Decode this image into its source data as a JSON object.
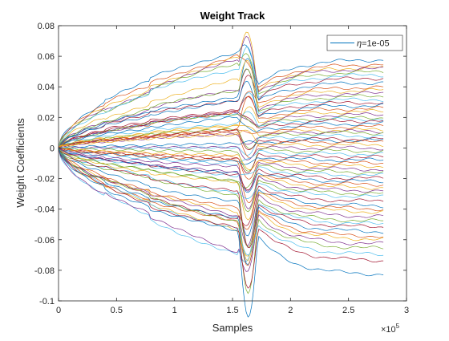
{
  "chart_data": {
    "type": "line",
    "title": "Weight Track",
    "xlabel": "Samples",
    "ylabel": "Weight Coefficients",
    "x_exponent_label": "×10",
    "x_exponent_power": "5",
    "xlim": [
      0,
      3
    ],
    "ylim": [
      -0.1,
      0.08
    ],
    "xticks": [
      0,
      0.5,
      1,
      1.5,
      2,
      2.5,
      3
    ],
    "xtick_labels": [
      "0",
      "0.5",
      "1",
      "1.5",
      "2",
      "2.5",
      "3"
    ],
    "yticks": [
      -0.1,
      -0.08,
      -0.06,
      -0.04,
      -0.02,
      0,
      0.02,
      0.04,
      0.06,
      0.08
    ],
    "ytick_labels": [
      "-0.1",
      "-0.08",
      "-0.06",
      "-0.04",
      "-0.02",
      "0",
      "0.02",
      "0.04",
      "0.06",
      "0.08"
    ],
    "grid": false,
    "legend_position": "top-right",
    "legend": {
      "symbol": "η",
      "text": "=1e-05",
      "color": "#0072BD"
    },
    "x_data_end": 2.8,
    "phase_breaks": [
      0.4,
      0.78,
      1.55,
      1.72
    ],
    "series_count": 64,
    "final_values": [
      0.058,
      0.055,
      0.053,
      0.052,
      0.05,
      0.048,
      0.046,
      0.043,
      0.04,
      0.038,
      0.036,
      0.034,
      0.032,
      0.03,
      0.028,
      0.026,
      0.024,
      0.022,
      0.02,
      0.019,
      0.018,
      0.016,
      0.014,
      0.012,
      0.011,
      0.01,
      0.008,
      0.006,
      0.005,
      0.004,
      0.002,
      0.0,
      -0.002,
      -0.004,
      -0.006,
      -0.008,
      -0.01,
      -0.012,
      -0.014,
      -0.016,
      -0.018,
      -0.02,
      -0.022,
      -0.024,
      -0.026,
      -0.028,
      -0.03,
      -0.032,
      -0.035,
      -0.038,
      -0.04,
      -0.042,
      -0.045,
      -0.048,
      -0.05,
      -0.052,
      -0.055,
      -0.058,
      -0.06,
      -0.063,
      -0.066,
      -0.07,
      -0.074,
      -0.083
    ],
    "colors": [
      "#0072BD",
      "#D95319",
      "#EDB120",
      "#7E2F8E",
      "#77AC30",
      "#4DBEEE",
      "#A2142F"
    ]
  }
}
